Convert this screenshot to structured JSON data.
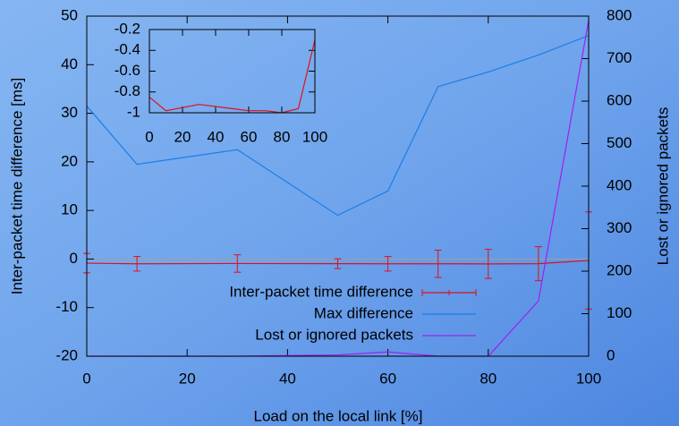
{
  "chart_data": {
    "type": "line",
    "xlabel": "Load on the local link [%]",
    "ylabel": "Inter-packet time difference [ms]",
    "y2label": "Lost or ignored packets",
    "x": [
      0,
      10,
      30,
      50,
      60,
      70,
      80,
      90,
      100
    ],
    "xlim": [
      0,
      100
    ],
    "xticks": [
      0,
      20,
      40,
      60,
      80,
      100
    ],
    "ylim": [
      -20,
      50
    ],
    "yticks": [
      -20,
      -10,
      0,
      10,
      20,
      30,
      40,
      50
    ],
    "y2lim": [
      0,
      800
    ],
    "y2ticks": [
      0,
      100,
      200,
      300,
      400,
      500,
      600,
      700,
      800
    ],
    "legend": "lower center",
    "series": [
      {
        "name": "Inter-packet time difference",
        "color": "#e0101a",
        "values": [
          -0.85,
          -0.98,
          -0.92,
          -0.96,
          -0.98,
          -0.98,
          -1.0,
          -0.96,
          -0.3
        ],
        "errors": [
          2,
          1.5,
          1.8,
          1.0,
          1.5,
          2.8,
          3.0,
          3.5,
          10
        ]
      },
      {
        "name": "Max difference",
        "color": "#1a7ee6",
        "values": [
          31.5,
          19.5,
          22.5,
          9,
          14,
          35.5,
          38.5,
          42,
          46
        ]
      },
      {
        "name": "Lost or ignored packets",
        "color": "#a020f0",
        "axis": "y2",
        "values": [
          0,
          0,
          0,
          3,
          10,
          0,
          0,
          130,
          790
        ]
      }
    ],
    "inset": {
      "xlim": [
        0,
        100
      ],
      "xticks": [
        0,
        20,
        40,
        60,
        80,
        100
      ],
      "ylim": [
        -1,
        -0.2
      ],
      "yticks": [
        -0.2,
        -0.4,
        -0.6,
        -0.8,
        -1
      ]
    }
  }
}
